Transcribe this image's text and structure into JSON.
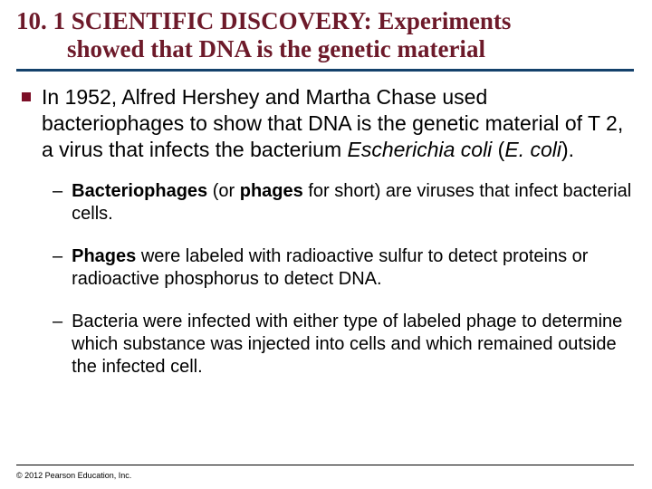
{
  "title": {
    "number": "10. 1",
    "line1": "SCIENTIFIC DISCOVERY: Experiments",
    "line2": "showed that DNA is the genetic material",
    "color": "#6d1a2a",
    "fontsize": 27
  },
  "divider_color": "#14416b",
  "main_bullet": {
    "marker_color": "#7c0f27",
    "text_parts": {
      "p1": "In 1952, Alfred Hershey and Martha Chase used bacteriophages to show that DNA is the genetic material of T 2, a virus that infects the bacterium ",
      "p2_italic": "Escherichia coli",
      "p3": " (",
      "p4_italic": "E. coli",
      "p5": ")."
    },
    "fontsize": 23
  },
  "sub_bullets": [
    {
      "parts": {
        "b1": "Bacteriophages",
        "t1": " (or ",
        "b2": "phages",
        "t2": " for short) are viruses that infect bacterial cells."
      }
    },
    {
      "parts": {
        "b1": "Phages",
        "t1": " were labeled with radioactive sulfur to detect proteins or radioactive phosphorus to detect DNA."
      }
    },
    {
      "parts": {
        "t1": "Bacteria were infected with either type of labeled phage to determine which substance was injected into cells and which remained outside the infected cell."
      }
    }
  ],
  "sub_fontsize": 20,
  "copyright": "© 2012 Pearson Education, Inc.",
  "background_color": "#ffffff"
}
